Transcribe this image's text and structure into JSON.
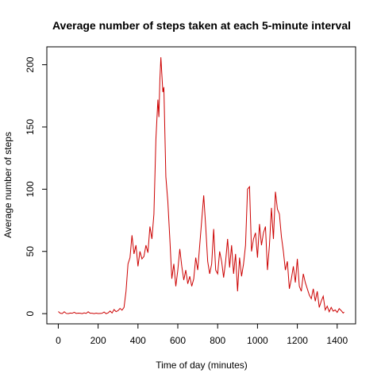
{
  "chart_data": {
    "type": "line",
    "title": "Average number of steps taken at each 5-minute interval",
    "xlabel": "Time of day (minutes)",
    "ylabel": "Average number of steps",
    "xlim": [
      -57.5,
      1492.5
    ],
    "ylim": [
      -8.2,
      214.4
    ],
    "x_ticks": [
      0,
      200,
      400,
      600,
      800,
      1000,
      1200,
      1400
    ],
    "y_ticks": [
      0,
      50,
      100,
      150,
      200
    ],
    "grid": false,
    "line_color": "#cc0000",
    "series": [
      {
        "x": [
          0,
          10,
          20,
          30,
          40,
          50,
          60,
          70,
          80,
          90,
          100,
          110,
          120,
          130,
          140,
          150,
          160,
          170,
          180,
          190,
          200,
          210,
          220,
          230,
          240,
          250,
          260,
          270,
          280,
          290,
          300,
          310,
          320,
          330,
          340,
          350,
          360,
          370,
          380,
          390,
          400,
          410,
          420,
          430,
          440,
          450,
          460,
          470,
          480,
          490,
          500,
          505,
          510,
          515,
          520,
          525,
          530,
          540,
          550,
          560,
          570,
          580,
          590,
          600,
          610,
          620,
          630,
          640,
          650,
          660,
          670,
          680,
          690,
          700,
          710,
          720,
          730,
          740,
          750,
          760,
          770,
          780,
          790,
          800,
          810,
          820,
          830,
          840,
          850,
          860,
          870,
          880,
          890,
          900,
          910,
          920,
          930,
          940,
          950,
          960,
          970,
          980,
          990,
          1000,
          1010,
          1020,
          1030,
          1040,
          1050,
          1060,
          1070,
          1080,
          1090,
          1100,
          1110,
          1120,
          1130,
          1140,
          1150,
          1160,
          1170,
          1180,
          1190,
          1200,
          1210,
          1220,
          1230,
          1240,
          1250,
          1260,
          1270,
          1280,
          1290,
          1300,
          1310,
          1320,
          1330,
          1340,
          1350,
          1360,
          1370,
          1380,
          1390,
          1400,
          1410,
          1420,
          1430,
          1435
        ],
        "y": [
          1.7,
          0.3,
          0.1,
          1.5,
          0.2,
          0.0,
          0.5,
          0.3,
          1.1,
          0.2,
          0.4,
          0.3,
          0.0,
          0.6,
          0.2,
          1.5,
          0.3,
          0.3,
          0.0,
          0.4,
          0.1,
          0.2,
          0.3,
          1.3,
          0.0,
          0.6,
          2.1,
          0.5,
          3.3,
          1.6,
          2.4,
          4.2,
          2.8,
          5.0,
          18.0,
          40.0,
          45.0,
          63.0,
          48.0,
          55.0,
          38.0,
          50.0,
          44.0,
          46.0,
          55.0,
          49.0,
          70.0,
          60.0,
          80.0,
          140.0,
          172.0,
          158.0,
          188.0,
          206.0,
          192.0,
          178.0,
          182.0,
          110.0,
          90.0,
          60.0,
          28.0,
          40.0,
          22.0,
          35.0,
          52.0,
          38.0,
          27.0,
          35.0,
          24.0,
          30.0,
          22.0,
          28.0,
          45.0,
          35.0,
          55.0,
          75.0,
          95.0,
          70.0,
          42.0,
          32.0,
          40.0,
          68.0,
          35.0,
          32.0,
          50.0,
          42.0,
          29.0,
          42.0,
          60.0,
          37.0,
          55.0,
          32.0,
          48.0,
          18.0,
          45.0,
          30.0,
          40.0,
          55.0,
          100.0,
          102.0,
          50.0,
          60.0,
          65.0,
          45.0,
          72.0,
          55.0,
          65.0,
          70.0,
          35.0,
          55.0,
          85.0,
          60.0,
          98.0,
          84.0,
          80.0,
          62.0,
          50.0,
          35.0,
          42.0,
          20.0,
          28.0,
          38.0,
          25.0,
          44.0,
          22.0,
          18.0,
          32.0,
          25.0,
          20.0,
          15.0,
          12.0,
          20.0,
          10.0,
          18.0,
          5.0,
          10.0,
          14.0,
          3.0,
          6.0,
          1.5,
          5.0,
          2.0,
          3.0,
          1.0,
          4.0,
          2.5,
          0.5,
          1.3
        ]
      }
    ]
  }
}
